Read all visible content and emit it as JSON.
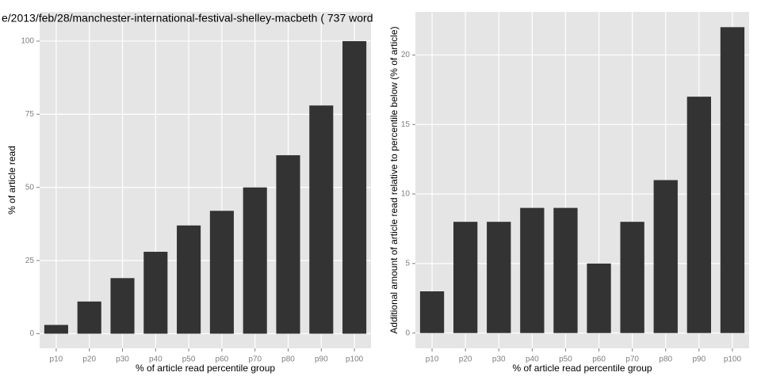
{
  "chart_data": [
    {
      "type": "bar",
      "title": "e/2013/feb/28/manchester-international-festival-shelley-macbeth ( 737 word",
      "x_label": "% of article read percentile group",
      "y_label": "% of article read",
      "categories": [
        "p10",
        "p20",
        "p30",
        "p40",
        "p50",
        "p60",
        "p70",
        "p80",
        "p90",
        "p100"
      ],
      "values": [
        3,
        11,
        19,
        28,
        37,
        42,
        50,
        61,
        78,
        100
      ],
      "color": "#333333",
      "ylim": [
        -5,
        110
      ],
      "yticks": [
        0,
        25,
        50,
        75,
        100
      ],
      "grid": true
    },
    {
      "type": "bar",
      "x_label": "% of article read percentile group",
      "y_label": "Additional amount of article read relative to percentile below (% of article)",
      "categories": [
        "p10",
        "p20",
        "p30",
        "p40",
        "p50",
        "p60",
        "p70",
        "p80",
        "p90",
        "p100"
      ],
      "values": [
        3,
        8,
        8,
        9,
        9,
        5,
        8,
        11,
        17,
        22
      ],
      "color": "#333333",
      "ylim": [
        -1.1,
        23.1
      ],
      "yticks": [
        0,
        5,
        10,
        15,
        20
      ],
      "grid": true
    }
  ]
}
